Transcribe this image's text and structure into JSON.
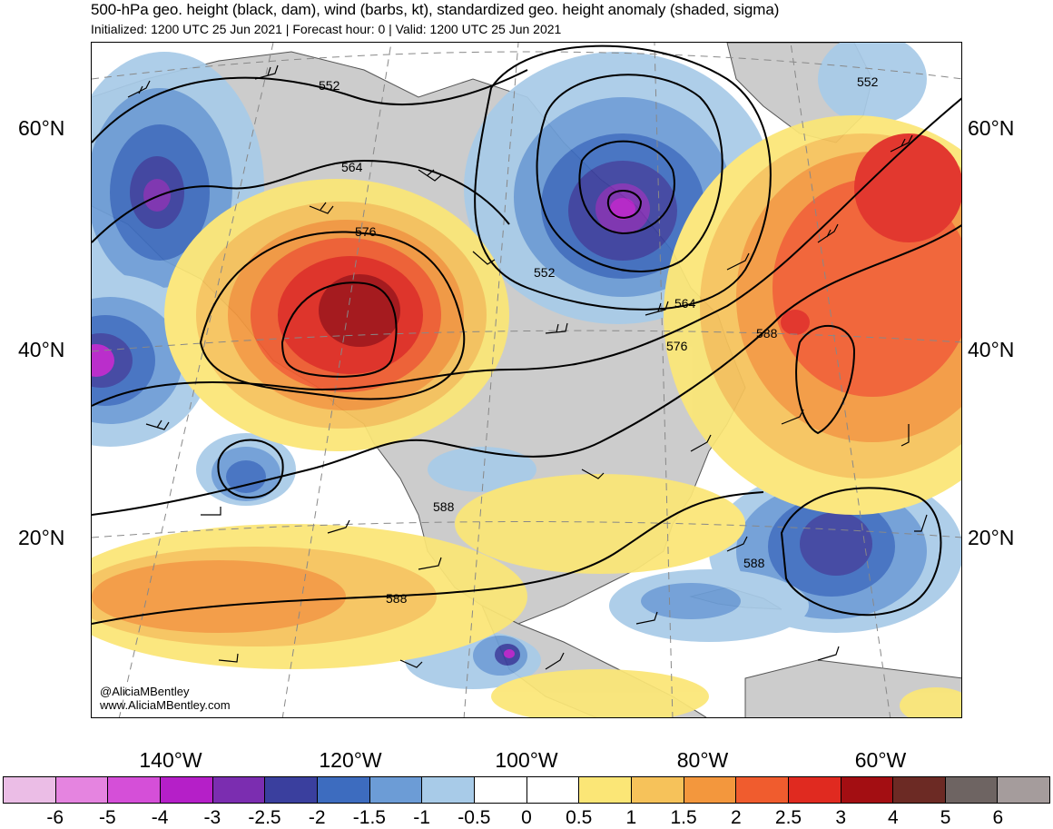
{
  "header": {
    "title": "500-hPa geo. height (black, dam), wind (barbs, kt), standardized geo. height anomaly (shaded, sigma)",
    "subtitle": "Initialized: 1200 UTC 25 Jun 2021 | Forecast hour: 0 | Valid: 1200 UTC 25 Jun 2021"
  },
  "lat_labels_left": [
    "60°N",
    "40°N",
    "20°N"
  ],
  "lat_labels_right": [
    "60°N",
    "40°N",
    "20°N"
  ],
  "lon_labels": [
    "140°W",
    "120°W",
    "100°W",
    "80°W",
    "60°W"
  ],
  "contour_labels": {
    "c552a": "552",
    "c552b": "552",
    "c552c": "552",
    "c564a": "564",
    "c564b": "564",
    "c576a": "576",
    "c576b": "576",
    "c588a": "588",
    "c588b": "588",
    "c588c": "588",
    "c588d": "588"
  },
  "credit": {
    "handle": "@AliciaMBentley",
    "website": "www.AliciaMBentley.com"
  },
  "colorbar": {
    "labels": [
      "-6",
      "-5",
      "-4",
      "-3",
      "-2.5",
      "-2",
      "-1.5",
      "-1",
      "-0.5",
      "0",
      "0.5",
      "1",
      "1.5",
      "2",
      "2.5",
      "3",
      "4",
      "5",
      "6"
    ],
    "colors": [
      "#ebbde6",
      "#e584e0",
      "#d54fd8",
      "#b51fc8",
      "#7b2db0",
      "#3a3f9e",
      "#3d6cbf",
      "#6c9cd6",
      "#a8cbe8",
      "#ffffff",
      "#ffffff",
      "#fbe676",
      "#f6c25a",
      "#f3973d",
      "#f05c2e",
      "#e02a20",
      "#a30e12",
      "#6c2a24",
      "#6e6462",
      "#a59c9c"
    ]
  },
  "colors": {
    "land": "#cccccc",
    "ocean": "#ffffff",
    "contour": "#000000",
    "barb": "#000000"
  }
}
